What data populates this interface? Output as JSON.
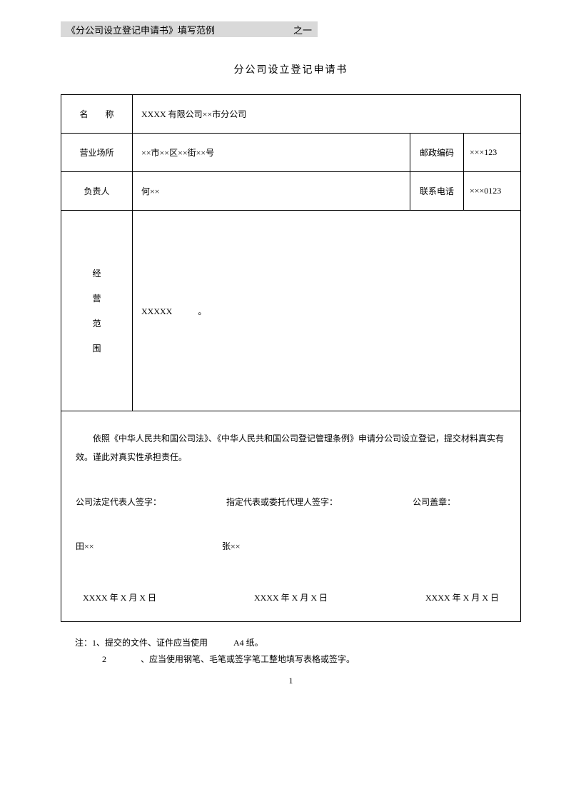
{
  "header": {
    "left": "《分公司设立登记申请书》填写范例",
    "right": "之一"
  },
  "title": "分公司设立登记申请书",
  "form": {
    "name_label": "名　　称",
    "name_value": "XXXX 有限公司××市分公司",
    "place_label": "营业场所",
    "place_value": "××市××区××街××号",
    "postcode_label": "邮政编码",
    "postcode_value": "×××123",
    "person_label": "负责人",
    "person_value": "何××",
    "phone_label": "联系电话",
    "phone_value": "×××0123",
    "scope_c1": "经",
    "scope_c2": "营",
    "scope_c3": "范",
    "scope_c4": "围",
    "scope_value": "XXXXX　　　。"
  },
  "declaration": {
    "text": "依照《中华人民共和国公司法》、《中华人民共和国公司登记管理条例》申请分公司设立登记，提交材料真实有效。谨此对真实性承担责任。",
    "sig1_label": "公司法定代表人签字：",
    "sig2_label": "指定代表或委托代理人签字：",
    "sig3_label": "公司盖章：",
    "sig1_name": "田××",
    "sig2_name": "张××",
    "date1": "XXXX 年 X 月 X 日",
    "date2": "XXXX 年 X 月 X 日",
    "date3": "XXXX 年 X 月 X 日"
  },
  "notes": {
    "line1": "注：1、提交的文件、证件应当使用　　　A4 纸。",
    "line2": "2　　　　、应当使用钢笔、毛笔或签字笔工整地填写表格或签字。"
  },
  "page_number": "1"
}
